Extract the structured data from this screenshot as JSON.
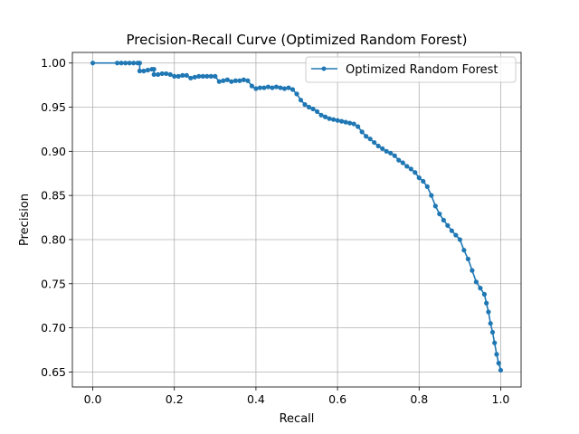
{
  "chart_data": {
    "type": "line",
    "title": "Precision-Recall Curve (Optimized Random Forest)",
    "xlabel": "Recall",
    "ylabel": "Precision",
    "xlim": [
      -0.05,
      1.05
    ],
    "ylim": [
      0.633,
      1.012
    ],
    "xticks": [
      0.0,
      0.2,
      0.4,
      0.6,
      0.8,
      1.0
    ],
    "xtick_labels": [
      "0.0",
      "0.2",
      "0.4",
      "0.6",
      "0.8",
      "1.0"
    ],
    "yticks": [
      0.65,
      0.7,
      0.75,
      0.8,
      0.85,
      0.9,
      0.95,
      1.0
    ],
    "ytick_labels": [
      "0.65",
      "0.70",
      "0.75",
      "0.80",
      "0.85",
      "0.90",
      "0.95",
      "1.00"
    ],
    "grid": true,
    "legend_position": "top-right",
    "color": "#1f77b4",
    "series": [
      {
        "name": "Optimized Random Forest",
        "marker": "dot",
        "points": [
          [
            0.0,
            1.0
          ],
          [
            0.06,
            1.0
          ],
          [
            0.07,
            1.0
          ],
          [
            0.08,
            1.0
          ],
          [
            0.09,
            1.0
          ],
          [
            0.1,
            1.0
          ],
          [
            0.11,
            1.0
          ],
          [
            0.115,
            1.0
          ],
          [
            0.115,
            0.991
          ],
          [
            0.125,
            0.991
          ],
          [
            0.135,
            0.992
          ],
          [
            0.145,
            0.993
          ],
          [
            0.15,
            0.993
          ],
          [
            0.15,
            0.987
          ],
          [
            0.16,
            0.987
          ],
          [
            0.17,
            0.988
          ],
          [
            0.18,
            0.988
          ],
          [
            0.19,
            0.987
          ],
          [
            0.2,
            0.985
          ],
          [
            0.21,
            0.985
          ],
          [
            0.22,
            0.986
          ],
          [
            0.23,
            0.986
          ],
          [
            0.24,
            0.983
          ],
          [
            0.25,
            0.984
          ],
          [
            0.26,
            0.985
          ],
          [
            0.27,
            0.985
          ],
          [
            0.28,
            0.985
          ],
          [
            0.29,
            0.985
          ],
          [
            0.3,
            0.985
          ],
          [
            0.31,
            0.979
          ],
          [
            0.32,
            0.98
          ],
          [
            0.33,
            0.981
          ],
          [
            0.34,
            0.979
          ],
          [
            0.35,
            0.98
          ],
          [
            0.36,
            0.98
          ],
          [
            0.37,
            0.981
          ],
          [
            0.38,
            0.98
          ],
          [
            0.39,
            0.974
          ],
          [
            0.4,
            0.971
          ],
          [
            0.41,
            0.972
          ],
          [
            0.42,
            0.972
          ],
          [
            0.43,
            0.973
          ],
          [
            0.44,
            0.972
          ],
          [
            0.45,
            0.973
          ],
          [
            0.46,
            0.972
          ],
          [
            0.47,
            0.971
          ],
          [
            0.48,
            0.972
          ],
          [
            0.49,
            0.97
          ],
          [
            0.5,
            0.965
          ],
          [
            0.51,
            0.958
          ],
          [
            0.52,
            0.953
          ],
          [
            0.53,
            0.95
          ],
          [
            0.54,
            0.948
          ],
          [
            0.55,
            0.945
          ],
          [
            0.56,
            0.941
          ],
          [
            0.57,
            0.939
          ],
          [
            0.58,
            0.937
          ],
          [
            0.59,
            0.936
          ],
          [
            0.6,
            0.935
          ],
          [
            0.61,
            0.934
          ],
          [
            0.62,
            0.933
          ],
          [
            0.63,
            0.932
          ],
          [
            0.64,
            0.931
          ],
          [
            0.65,
            0.928
          ],
          [
            0.66,
            0.922
          ],
          [
            0.67,
            0.917
          ],
          [
            0.68,
            0.914
          ],
          [
            0.69,
            0.91
          ],
          [
            0.7,
            0.906
          ],
          [
            0.71,
            0.903
          ],
          [
            0.72,
            0.9
          ],
          [
            0.73,
            0.898
          ],
          [
            0.74,
            0.895
          ],
          [
            0.75,
            0.89
          ],
          [
            0.76,
            0.887
          ],
          [
            0.77,
            0.883
          ],
          [
            0.78,
            0.88
          ],
          [
            0.79,
            0.876
          ],
          [
            0.8,
            0.87
          ],
          [
            0.81,
            0.866
          ],
          [
            0.82,
            0.86
          ],
          [
            0.83,
            0.85
          ],
          [
            0.84,
            0.838
          ],
          [
            0.85,
            0.829
          ],
          [
            0.86,
            0.822
          ],
          [
            0.87,
            0.816
          ],
          [
            0.88,
            0.81
          ],
          [
            0.89,
            0.805
          ],
          [
            0.9,
            0.8
          ],
          [
            0.91,
            0.788
          ],
          [
            0.92,
            0.778
          ],
          [
            0.93,
            0.765
          ],
          [
            0.94,
            0.752
          ],
          [
            0.95,
            0.745
          ],
          [
            0.96,
            0.738
          ],
          [
            0.965,
            0.728
          ],
          [
            0.97,
            0.718
          ],
          [
            0.975,
            0.705
          ],
          [
            0.98,
            0.695
          ],
          [
            0.985,
            0.683
          ],
          [
            0.99,
            0.67
          ],
          [
            0.995,
            0.66
          ],
          [
            1.0,
            0.652
          ]
        ]
      }
    ]
  }
}
